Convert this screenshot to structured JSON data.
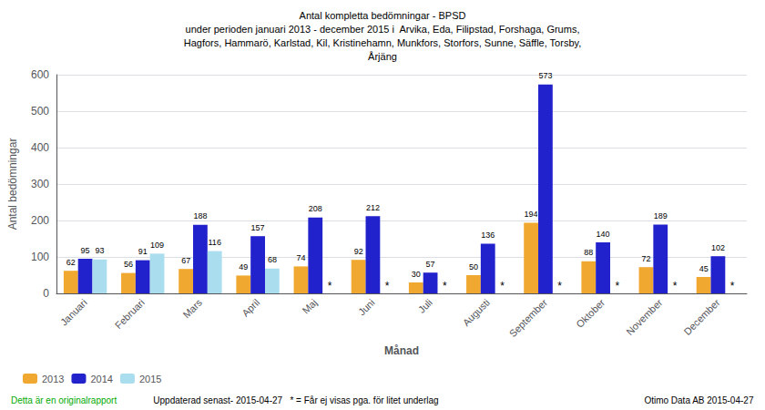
{
  "chart_data": {
    "type": "bar",
    "title": "Antal kompletta bedömningar - BPSD\nunder perioden januari 2013 - december 2015 i  Arvika, Eda, Filipstad, Forshaga, Grums,\nHagfors, Hammarö, Karlstad, Kil, Kristinehamn, Munkfors, Storfors, Sunne, Säffle, Torsby,\nÅrjäng",
    "x_label": "Månad",
    "y_label": "Antal bedömningar",
    "categories": [
      "Januari",
      "Februari",
      "Mars",
      "April",
      "Maj",
      "Juni",
      "Juli",
      "Augusti",
      "September",
      "Oktober",
      "November",
      "December"
    ],
    "series": [
      {
        "name": "2013",
        "color": "#F0A830",
        "values": [
          62,
          56,
          67,
          49,
          74,
          92,
          30,
          50,
          194,
          88,
          72,
          45
        ]
      },
      {
        "name": "2014",
        "color": "#2222CC",
        "values": [
          95,
          91,
          188,
          157,
          208,
          212,
          57,
          136,
          573,
          140,
          189,
          102
        ]
      },
      {
        "name": "2015",
        "color": "#AADDEE",
        "values": [
          93,
          109,
          116,
          68,
          null,
          null,
          null,
          null,
          null,
          null,
          null,
          null
        ],
        "value_labels": [
          "93",
          "109",
          "116",
          "68",
          "*",
          "*",
          "*",
          "*",
          "*",
          "*",
          "*",
          "*"
        ]
      }
    ],
    "ylim": [
      0,
      600
    ],
    "yticks": [
      0,
      100,
      200,
      300,
      400,
      500,
      600
    ],
    "grid": true,
    "legend": "bottom",
    "data_labels": true,
    "annotations": [
      {
        "text": "Detta är en originalrapport",
        "color": "#00AA00"
      },
      {
        "text": "   Uppdaterad senast- 2015-04-27   * = Får ej visas pga. för litet underlag"
      },
      {
        "text": "Otimo Data AB 2015-04-27"
      }
    ]
  }
}
